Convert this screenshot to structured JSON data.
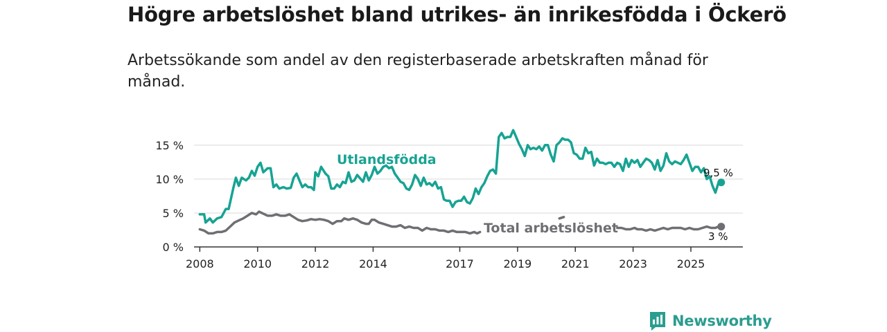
{
  "title": "Högre arbetslöshet bland utrikes- än inrikesfödda i Öckerö",
  "subtitle": "Arbetssökande som andel av den registerbaserade arbetskraften månad för månad.",
  "brand": {
    "name": "Newsworthy",
    "icon": "bar-chart-flag-icon",
    "color": "#2a9d8f"
  },
  "chart_data": {
    "type": "line",
    "title": "Högre arbetslöshet bland utrikes- än inrikesfödda i Öckerö",
    "xlabel": "",
    "ylabel": "",
    "xlim": [
      2007.8,
      2026.8
    ],
    "ylim": [
      0,
      16
    ],
    "x_ticks": [
      {
        "value": 2008,
        "label": "2008"
      },
      {
        "value": 2010,
        "label": "2010"
      },
      {
        "value": 2012,
        "label": "2012"
      },
      {
        "value": 2014,
        "label": "2014"
      },
      {
        "value": 2017,
        "label": "2017"
      },
      {
        "value": 2019,
        "label": "2019"
      },
      {
        "value": 2021,
        "label": "2021"
      },
      {
        "value": 2023,
        "label": "2023"
      },
      {
        "value": 2025,
        "label": "2025"
      }
    ],
    "y_ticks": [
      {
        "value": 0,
        "label": "0 %"
      },
      {
        "value": 5,
        "label": "5 %"
      },
      {
        "value": 10,
        "label": "10 %"
      },
      {
        "value": 15,
        "label": "15 %"
      }
    ],
    "grid": true,
    "series": [
      {
        "name": "Utlandsfödda",
        "color": "#17a393",
        "end_label": "9,5 %",
        "points": [
          [
            2008.0,
            4.8
          ],
          [
            2008.15,
            4.8
          ],
          [
            2008.2,
            3.6
          ],
          [
            2008.35,
            4.2
          ],
          [
            2008.45,
            3.6
          ],
          [
            2008.6,
            4.2
          ],
          [
            2008.75,
            4.4
          ],
          [
            2008.9,
            5.6
          ],
          [
            2009.0,
            5.6
          ],
          [
            2009.15,
            8.5
          ],
          [
            2009.25,
            10.2
          ],
          [
            2009.35,
            9.0
          ],
          [
            2009.45,
            10.2
          ],
          [
            2009.6,
            9.8
          ],
          [
            2009.7,
            10.2
          ],
          [
            2009.8,
            11.2
          ],
          [
            2009.9,
            10.5
          ],
          [
            2010.0,
            11.8
          ],
          [
            2010.1,
            12.4
          ],
          [
            2010.2,
            11.0
          ],
          [
            2010.35,
            11.6
          ],
          [
            2010.45,
            11.6
          ],
          [
            2010.55,
            8.8
          ],
          [
            2010.65,
            9.2
          ],
          [
            2010.75,
            8.6
          ],
          [
            2010.9,
            8.8
          ],
          [
            2011.0,
            8.6
          ],
          [
            2011.15,
            8.7
          ],
          [
            2011.25,
            10.2
          ],
          [
            2011.35,
            10.8
          ],
          [
            2011.45,
            9.8
          ],
          [
            2011.55,
            8.8
          ],
          [
            2011.65,
            9.2
          ],
          [
            2011.75,
            8.8
          ],
          [
            2011.85,
            8.8
          ],
          [
            2011.95,
            8.4
          ],
          [
            2012.0,
            11.0
          ],
          [
            2012.1,
            10.4
          ],
          [
            2012.2,
            11.8
          ],
          [
            2012.35,
            10.8
          ],
          [
            2012.45,
            10.4
          ],
          [
            2012.55,
            8.6
          ],
          [
            2012.65,
            8.6
          ],
          [
            2012.75,
            9.2
          ],
          [
            2012.85,
            8.8
          ],
          [
            2012.95,
            9.6
          ],
          [
            2013.05,
            9.4
          ],
          [
            2013.15,
            11.0
          ],
          [
            2013.25,
            9.6
          ],
          [
            2013.35,
            9.8
          ],
          [
            2013.45,
            10.6
          ],
          [
            2013.55,
            10.1
          ],
          [
            2013.65,
            9.6
          ],
          [
            2013.75,
            11.0
          ],
          [
            2013.85,
            9.8
          ],
          [
            2013.95,
            10.6
          ],
          [
            2014.05,
            11.8
          ],
          [
            2014.15,
            10.8
          ],
          [
            2014.25,
            11.2
          ],
          [
            2014.35,
            11.8
          ],
          [
            2014.45,
            12.0
          ],
          [
            2014.55,
            11.6
          ],
          [
            2014.65,
            11.8
          ],
          [
            2014.75,
            10.8
          ],
          [
            2014.85,
            10.2
          ],
          [
            2014.95,
            9.6
          ],
          [
            2015.05,
            9.4
          ],
          [
            2015.15,
            8.6
          ],
          [
            2015.25,
            8.4
          ],
          [
            2015.35,
            9.2
          ],
          [
            2015.45,
            10.6
          ],
          [
            2015.55,
            10.0
          ],
          [
            2015.65,
            9.0
          ],
          [
            2015.75,
            10.2
          ],
          [
            2015.85,
            9.2
          ],
          [
            2015.95,
            9.4
          ],
          [
            2016.05,
            9.0
          ],
          [
            2016.15,
            9.6
          ],
          [
            2016.25,
            8.6
          ],
          [
            2016.35,
            8.8
          ],
          [
            2016.45,
            7.0
          ],
          [
            2016.55,
            6.8
          ],
          [
            2016.65,
            6.8
          ],
          [
            2016.75,
            5.9
          ],
          [
            2016.85,
            6.6
          ],
          [
            2016.95,
            6.8
          ],
          [
            2017.05,
            6.8
          ],
          [
            2017.15,
            7.4
          ],
          [
            2017.25,
            6.6
          ],
          [
            2017.35,
            6.4
          ],
          [
            2017.45,
            7.2
          ],
          [
            2017.55,
            8.6
          ],
          [
            2017.65,
            7.8
          ],
          [
            2017.75,
            8.8
          ],
          [
            2017.85,
            9.4
          ],
          [
            2017.95,
            10.4
          ],
          [
            2018.05,
            11.2
          ],
          [
            2018.15,
            11.4
          ],
          [
            2018.25,
            10.8
          ],
          [
            2018.35,
            16.2
          ],
          [
            2018.45,
            16.8
          ],
          [
            2018.55,
            16.0
          ],
          [
            2018.65,
            16.2
          ],
          [
            2018.75,
            16.2
          ],
          [
            2018.85,
            17.2
          ],
          [
            2018.95,
            16.2
          ],
          [
            2019.05,
            15.2
          ],
          [
            2019.15,
            14.4
          ],
          [
            2019.25,
            13.4
          ],
          [
            2019.35,
            15.0
          ],
          [
            2019.45,
            14.4
          ],
          [
            2019.55,
            14.6
          ],
          [
            2019.65,
            14.4
          ],
          [
            2019.75,
            14.8
          ],
          [
            2019.85,
            14.2
          ],
          [
            2019.95,
            15.0
          ],
          [
            2020.05,
            15.0
          ],
          [
            2020.15,
            13.6
          ],
          [
            2020.25,
            12.6
          ],
          [
            2020.35,
            15.0
          ],
          [
            2020.45,
            15.4
          ],
          [
            2020.55,
            16.0
          ],
          [
            2020.65,
            15.8
          ],
          [
            2020.75,
            15.8
          ],
          [
            2020.85,
            15.4
          ],
          [
            2020.95,
            13.8
          ],
          [
            2021.05,
            13.6
          ],
          [
            2021.15,
            13.0
          ],
          [
            2021.25,
            13.0
          ],
          [
            2021.35,
            14.6
          ],
          [
            2021.45,
            13.8
          ],
          [
            2021.55,
            14.0
          ],
          [
            2021.65,
            12.0
          ],
          [
            2021.75,
            13.0
          ],
          [
            2021.85,
            12.4
          ],
          [
            2021.95,
            12.4
          ],
          [
            2022.05,
            12.2
          ],
          [
            2022.15,
            12.4
          ],
          [
            2022.25,
            12.4
          ],
          [
            2022.35,
            11.8
          ],
          [
            2022.45,
            12.4
          ],
          [
            2022.55,
            12.2
          ],
          [
            2022.65,
            11.2
          ],
          [
            2022.75,
            13.0
          ],
          [
            2022.85,
            11.8
          ],
          [
            2022.95,
            12.8
          ],
          [
            2023.05,
            12.4
          ],
          [
            2023.15,
            12.8
          ],
          [
            2023.25,
            11.8
          ],
          [
            2023.35,
            12.4
          ],
          [
            2023.45,
            13.0
          ],
          [
            2023.55,
            12.8
          ],
          [
            2023.65,
            12.4
          ],
          [
            2023.75,
            11.4
          ],
          [
            2023.85,
            12.8
          ],
          [
            2023.95,
            11.2
          ],
          [
            2024.05,
            12.0
          ],
          [
            2024.15,
            13.8
          ],
          [
            2024.25,
            12.6
          ],
          [
            2024.35,
            12.2
          ],
          [
            2024.45,
            12.6
          ],
          [
            2024.55,
            12.4
          ],
          [
            2024.65,
            12.2
          ],
          [
            2024.75,
            12.8
          ],
          [
            2024.85,
            13.6
          ],
          [
            2024.95,
            12.4
          ],
          [
            2025.05,
            11.2
          ],
          [
            2025.15,
            11.8
          ],
          [
            2025.25,
            11.8
          ],
          [
            2025.35,
            11.0
          ],
          [
            2025.45,
            11.6
          ],
          [
            2025.55,
            10.0
          ],
          [
            2025.65,
            10.4
          ],
          [
            2025.75,
            9.0
          ],
          [
            2025.85,
            8.0
          ],
          [
            2025.95,
            9.4
          ],
          [
            2026.0,
            9.2
          ],
          [
            2026.05,
            9.5
          ]
        ]
      },
      {
        "name": "Total arbetslöshet",
        "color": "#6e6e73",
        "end_label": "3 %",
        "points": [
          [
            2008.0,
            2.6
          ],
          [
            2008.15,
            2.4
          ],
          [
            2008.3,
            2.0
          ],
          [
            2008.45,
            2.0
          ],
          [
            2008.6,
            2.2
          ],
          [
            2008.75,
            2.2
          ],
          [
            2008.9,
            2.4
          ],
          [
            2009.05,
            3.0
          ],
          [
            2009.2,
            3.6
          ],
          [
            2009.35,
            3.9
          ],
          [
            2009.5,
            4.2
          ],
          [
            2009.65,
            4.6
          ],
          [
            2009.8,
            5.0
          ],
          [
            2009.95,
            4.8
          ],
          [
            2010.05,
            5.2
          ],
          [
            2010.2,
            4.9
          ],
          [
            2010.35,
            4.6
          ],
          [
            2010.5,
            4.6
          ],
          [
            2010.65,
            4.8
          ],
          [
            2010.8,
            4.6
          ],
          [
            2010.95,
            4.6
          ],
          [
            2011.1,
            4.8
          ],
          [
            2011.25,
            4.4
          ],
          [
            2011.4,
            4.0
          ],
          [
            2011.55,
            3.8
          ],
          [
            2011.7,
            3.9
          ],
          [
            2011.85,
            4.1
          ],
          [
            2012.0,
            4.0
          ],
          [
            2012.15,
            4.1
          ],
          [
            2012.3,
            4.0
          ],
          [
            2012.45,
            3.8
          ],
          [
            2012.6,
            3.4
          ],
          [
            2012.75,
            3.8
          ],
          [
            2012.9,
            3.8
          ],
          [
            2013.0,
            4.2
          ],
          [
            2013.15,
            4.0
          ],
          [
            2013.3,
            4.2
          ],
          [
            2013.45,
            4.0
          ],
          [
            2013.6,
            3.6
          ],
          [
            2013.75,
            3.4
          ],
          [
            2013.85,
            3.4
          ],
          [
            2013.95,
            4.0
          ],
          [
            2014.05,
            4.0
          ],
          [
            2014.2,
            3.6
          ],
          [
            2014.35,
            3.4
          ],
          [
            2014.5,
            3.2
          ],
          [
            2014.65,
            3.0
          ],
          [
            2014.8,
            3.0
          ],
          [
            2014.95,
            3.2
          ],
          [
            2015.1,
            2.8
          ],
          [
            2015.25,
            3.0
          ],
          [
            2015.4,
            2.8
          ],
          [
            2015.55,
            2.8
          ],
          [
            2015.7,
            2.4
          ],
          [
            2015.85,
            2.8
          ],
          [
            2016.0,
            2.6
          ],
          [
            2016.15,
            2.6
          ],
          [
            2016.3,
            2.4
          ],
          [
            2016.45,
            2.4
          ],
          [
            2016.6,
            2.2
          ],
          [
            2016.75,
            2.4
          ],
          [
            2016.9,
            2.2
          ],
          [
            2017.05,
            2.2
          ],
          [
            2017.2,
            2.2
          ],
          [
            2017.35,
            2.0
          ],
          [
            2017.5,
            2.2
          ],
          [
            2017.6,
            2.0
          ],
          [
            2017.7,
            2.2
          ]
        ],
        "points_2": [
          [
            2020.45,
            4.2
          ],
          [
            2020.6,
            4.4
          ]
        ],
        "points_3": [
          [
            2022.45,
            2.8
          ],
          [
            2022.6,
            2.8
          ],
          [
            2022.75,
            2.6
          ],
          [
            2022.9,
            2.6
          ],
          [
            2023.05,
            2.8
          ],
          [
            2023.15,
            2.6
          ],
          [
            2023.3,
            2.6
          ],
          [
            2023.45,
            2.4
          ],
          [
            2023.6,
            2.6
          ],
          [
            2023.75,
            2.4
          ],
          [
            2023.9,
            2.6
          ],
          [
            2024.05,
            2.8
          ],
          [
            2024.2,
            2.6
          ],
          [
            2024.35,
            2.8
          ],
          [
            2024.5,
            2.8
          ],
          [
            2024.65,
            2.8
          ],
          [
            2024.8,
            2.6
          ],
          [
            2024.95,
            2.8
          ],
          [
            2025.1,
            2.6
          ],
          [
            2025.25,
            2.6
          ],
          [
            2025.4,
            2.8
          ],
          [
            2025.55,
            3.0
          ],
          [
            2025.7,
            2.8
          ],
          [
            2025.85,
            2.8
          ],
          [
            2025.95,
            3.0
          ],
          [
            2026.05,
            3.0
          ]
        ]
      }
    ]
  }
}
